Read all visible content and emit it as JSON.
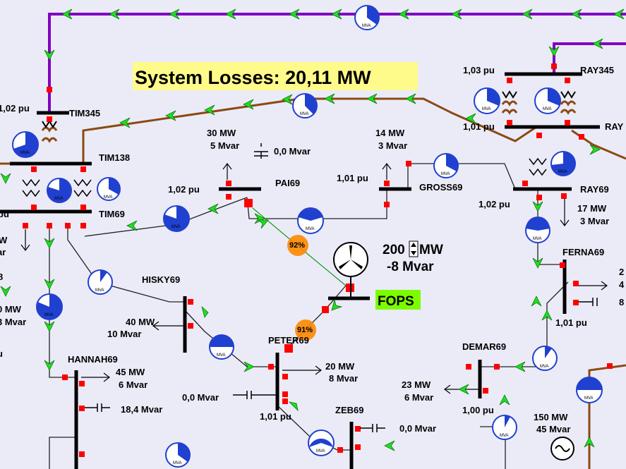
{
  "system_losses": {
    "text": "System Losses: 20,11 MW",
    "highlight_color": "#fefb8a"
  },
  "colors": {
    "line_345kv": "#8000c0",
    "line_138kv": "#8b4a12",
    "line_69kv": "#000000",
    "bus": "#000000",
    "flow_arrow": "#22dd22",
    "breaker": "#ff0000",
    "pie_fill": "#2040d0",
    "pie_loaded": "#ff8800",
    "fops_label_bg": "#7cfc00"
  },
  "buses": {
    "tim345": "TIM345",
    "tim138": "TIM138",
    "tim69": "TIM69",
    "pai69": "PAI69",
    "gross69": "GROSS69",
    "ray345": "RAY345",
    "ray345_partial": "RAY",
    "ray69": "RAY69",
    "ferna69": "FERNA69",
    "hisky69": "HISKY69",
    "peter69": "PETER69",
    "hannah69": "HANNAH69",
    "demar69": "DEMAR69",
    "zeb69": "ZEB69",
    "fops": "FOPS"
  },
  "voltages": {
    "tim345": "1,02 pu",
    "tim69": "pu",
    "pai69": "1,02 pu",
    "gross69": "1,01 pu",
    "ray345": "1,03 pu",
    "ray138": "1,01 pu",
    "ray69": "1,02 pu",
    "ferna69": "1,01 pu",
    "peter69": "1,01 pu",
    "demar69": "1,00 pu",
    "left_edge": "u"
  },
  "loads": {
    "pai69_mw": "30 MW",
    "pai69_mvar": "5 Mvar",
    "gross69_mw": "14 MW",
    "gross69_mvar": "3 Mvar",
    "ray69_mw": "17 MW",
    "ray69_mvar": "3 Mvar",
    "hisky69_mw": "40 MW",
    "hisky69_mvar": "10 Mvar",
    "peter69_mw": "20 MW",
    "peter69_mvar": "8 Mvar",
    "hannah69_mw": "45 MW",
    "hannah69_mvar": "6 Mvar",
    "demar69_mw": "23 MW",
    "demar69_mvar": "6 Mvar",
    "zeb69_mw": "150 MW",
    "zeb69_mvar": "45 Mvar",
    "tim69_mw_partial": "W",
    "tim69_mvar_partial": "ar",
    "left_mw_partial": "0 MW",
    "left_mvar_partial": "3 Mvar",
    "left_num_partial": "8",
    "ferna69_right_top": "2",
    "ferna69_right_mid": "4",
    "ferna69_right_cap": "8"
  },
  "shunts": {
    "pai69": "0,0 Mvar",
    "hannah69": "18,4 Mvar",
    "peter69": "0,0 Mvar",
    "zeb69": "0,0 Mvar"
  },
  "generator": {
    "mw_value": "200",
    "mw_unit": "MW",
    "mvar": "-8 Mvar",
    "name": "FOPS"
  },
  "line_loading": {
    "pai_fops": "92%",
    "fops_peter": "91%",
    "unit": "MVA"
  },
  "pie_label": "MVA"
}
